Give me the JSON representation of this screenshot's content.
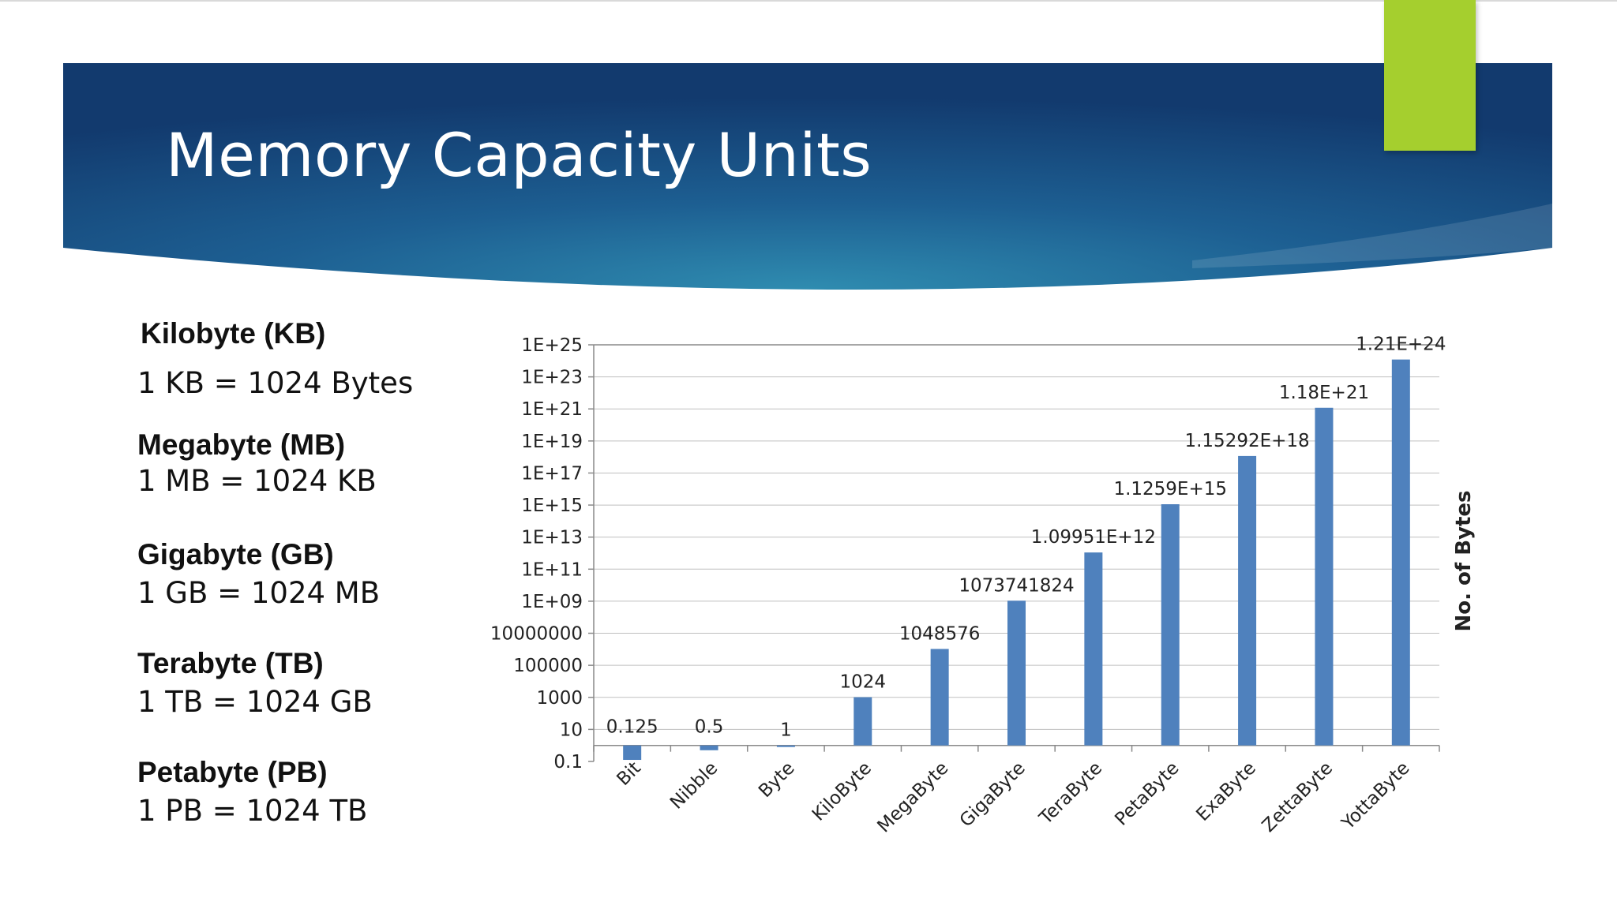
{
  "slide": {
    "title": "Memory Capacity Units",
    "colors": {
      "banner_dark": "#123a6e",
      "banner_light": "#2f8cb0",
      "accent": "#a5cf2e",
      "bar": "#4f81bd"
    }
  },
  "units": [
    {
      "name": "Kilobyte (KB)",
      "equation": "1 KB = 1024 Bytes"
    },
    {
      "name": "Megabyte (MB)",
      "equation": "1 MB = 1024 KB"
    },
    {
      "name": "Gigabyte (GB)",
      "equation": "1 GB = 1024 MB"
    },
    {
      "name": "Terabyte (TB)",
      "equation": "1 TB = 1024 GB"
    },
    {
      "name": "Petabyte (PB)",
      "equation": "1 PB = 1024 TB"
    }
  ],
  "chart_data": {
    "type": "bar",
    "scale": "log",
    "ylabel": "No. of Bytes",
    "ylim": [
      0.1,
      1e+25
    ],
    "yticks": [
      {
        "value": 1e+25,
        "label": "1E+25"
      },
      {
        "value": 1e+23,
        "label": "1E+23"
      },
      {
        "value": 1e+21,
        "label": "1E+21"
      },
      {
        "value": 1e+19,
        "label": "1E+19"
      },
      {
        "value": 1e+17,
        "label": "1E+17"
      },
      {
        "value": 1000000000000000.0,
        "label": "1E+15"
      },
      {
        "value": 10000000000000.0,
        "label": "1E+13"
      },
      {
        "value": 100000000000.0,
        "label": "1E+11"
      },
      {
        "value": 1000000000.0,
        "label": "1E+09"
      },
      {
        "value": 10000000.0,
        "label": "10000000"
      },
      {
        "value": 100000.0,
        "label": "100000"
      },
      {
        "value": 1000.0,
        "label": "1000"
      },
      {
        "value": 10,
        "label": "10"
      },
      {
        "value": 0.1,
        "label": "0.1"
      }
    ],
    "categories": [
      "Bit",
      "Nibble",
      "Byte",
      "KiloByte",
      "MegaByte",
      "GigaByte",
      "TeraByte",
      "PetaByte",
      "ExaByte",
      "ZettaByte",
      "YottaByte"
    ],
    "values": [
      0.125,
      0.5,
      1,
      1024,
      1048576,
      1073741824,
      1099510000000.0,
      1125900000000000.0,
      1.15292e+18,
      1.18e+21,
      1.21e+24
    ],
    "value_labels": [
      "0.125",
      "0.5",
      "1",
      "1024",
      "1048576",
      "1073741824",
      "1.09951E+12",
      "1.1259E+15",
      "1.15292E+18",
      "1.18E+21",
      "1.21E+24"
    ],
    "grid": true,
    "bar_color": "#4f81bd"
  }
}
